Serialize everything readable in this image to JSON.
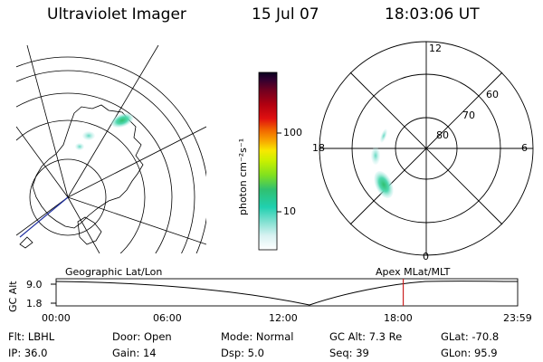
{
  "header": {
    "title": "Ultraviolet Imager",
    "date": "15 Jul 07",
    "time": "18:03:06 UT"
  },
  "colorbar": {
    "label": "photon cm⁻²s⁻¹",
    "ticks": [
      "100",
      "10"
    ]
  },
  "polar_plot": {
    "mlt_labels": {
      "top": "12",
      "right": "6",
      "left": "18",
      "bottom": "0"
    },
    "lat_labels": [
      "60",
      "70",
      "80"
    ]
  },
  "timeline": {
    "left_title": "Geographic Lat/Lon",
    "right_title": "Apex MLat/MLT",
    "axis_label": "GC Alt",
    "y_ticks": [
      "9.0",
      "1.8"
    ],
    "x_ticks": [
      "00:00",
      "06:00",
      "12:00",
      "18:00",
      "23:59"
    ],
    "current_time": "18:03"
  },
  "info": {
    "col1": [
      "Flt: LBHL",
      "IP: 36.0"
    ],
    "col2": [
      "Door: Open",
      "Gain: 14"
    ],
    "col3": [
      "Mode: Normal",
      "Dsp:    5.0"
    ],
    "col4": [
      "GC Alt: 7.3 Re",
      "Seq: 39"
    ],
    "col5": [
      "GLat: -70.8",
      "GLon:  95.9"
    ]
  },
  "colors": {
    "cursor": "#cc2222",
    "aurora_low": "#7fe0d0",
    "aurora_high": "#30c070"
  }
}
